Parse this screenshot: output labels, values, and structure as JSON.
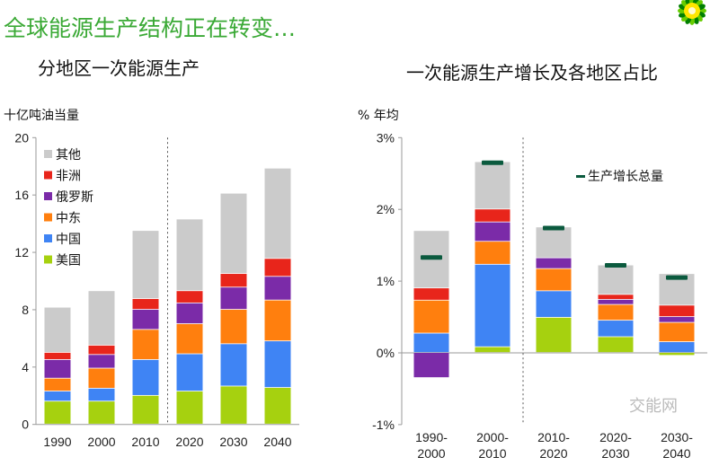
{
  "header": {
    "title": "全球能源生产结构正在转变…",
    "logo": "bp-helios-logo"
  },
  "watermark": "交能网",
  "colors": {
    "美国": "#a6d10f",
    "中国": "#3f84f4",
    "中东": "#ff7f0e",
    "俄罗斯": "#7b2ba8",
    "非洲": "#e8251b",
    "其他": "#cbcbcb",
    "total_marker": "#0b5a3e",
    "title": "#3aa935"
  },
  "chart_data": [
    {
      "type": "bar",
      "stacked": true,
      "title": "分地区一次能源生产",
      "ylabel": "十亿吨油当量",
      "ylim": [
        0,
        20
      ],
      "yticks": [
        0,
        4,
        8,
        12,
        16,
        20
      ],
      "ytick_labels": [
        "0",
        "4",
        "8",
        "12",
        "16",
        "20"
      ],
      "grid": false,
      "legend": "top-left",
      "categories": [
        "1990",
        "2000",
        "2010",
        "2020",
        "2030",
        "2040"
      ],
      "divider_after": "2010",
      "series": [
        {
          "name": "美国",
          "values": [
            1.6,
            1.6,
            2.0,
            2.3,
            2.65,
            2.55
          ]
        },
        {
          "name": "中国",
          "values": [
            0.7,
            0.9,
            2.5,
            2.6,
            2.95,
            3.25
          ]
        },
        {
          "name": "中东",
          "values": [
            0.9,
            1.4,
            2.1,
            2.1,
            2.4,
            2.85
          ]
        },
        {
          "name": "俄罗斯",
          "values": [
            1.3,
            0.95,
            1.4,
            1.45,
            1.55,
            1.65
          ]
        },
        {
          "name": "非洲",
          "values": [
            0.5,
            0.65,
            0.75,
            0.85,
            0.95,
            1.25
          ]
        },
        {
          "name": "其他",
          "values": [
            3.15,
            3.8,
            4.75,
            5.0,
            5.6,
            6.3
          ]
        }
      ],
      "legend_order": [
        "其他",
        "非洲",
        "俄罗斯",
        "中东",
        "中国",
        "美国"
      ]
    },
    {
      "type": "bar",
      "stacked": true,
      "title": "一次能源生产增长及各地区占比",
      "ylabel": "% 年均",
      "ylim": [
        -1,
        3
      ],
      "yticks": [
        -1,
        0,
        1,
        2,
        3
      ],
      "ytick_labels": [
        "-1%",
        "0%",
        "1%",
        "2%",
        "3%"
      ],
      "grid": false,
      "legend": "top-right",
      "categories": [
        "1990-\n2000",
        "2000-\n2010",
        "2010-\n2020",
        "2020-\n2030",
        "2030-\n2040"
      ],
      "divider_after": "2000-\n2010",
      "series": [
        {
          "name": "美国",
          "values": [
            0.0,
            0.08,
            0.49,
            0.22,
            -0.04
          ]
        },
        {
          "name": "中国",
          "values": [
            0.27,
            1.15,
            0.37,
            0.23,
            0.15
          ]
        },
        {
          "name": "中东",
          "values": [
            0.46,
            0.32,
            0.31,
            0.22,
            0.27
          ]
        },
        {
          "name": "俄罗斯",
          "values": [
            -0.35,
            0.27,
            0.15,
            0.07,
            0.08
          ]
        },
        {
          "name": "非洲",
          "values": [
            0.17,
            0.18,
            0.0,
            0.07,
            0.16
          ]
        },
        {
          "name": "其他",
          "values": [
            0.8,
            0.66,
            0.43,
            0.41,
            0.44
          ]
        }
      ],
      "total_series": {
        "name": "生产增长总量",
        "values": [
          1.33,
          2.65,
          1.74,
          1.22,
          1.05
        ]
      }
    }
  ]
}
